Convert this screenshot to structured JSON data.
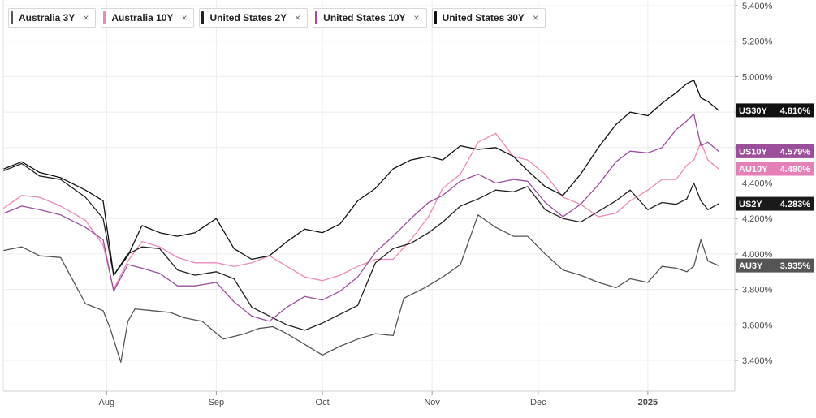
{
  "chart_data": {
    "type": "line",
    "x_ticks": [
      "Aug",
      "Sep",
      "Oct",
      "Nov",
      "Dec",
      "2025"
    ],
    "y_ticks": [
      "5.400%",
      "5.200%",
      "5.000%",
      "4.800%",
      "4.600%",
      "4.400%",
      "4.200%",
      "4.000%",
      "3.800%",
      "3.600%",
      "3.400%"
    ],
    "y_tick_values": [
      5.4,
      5.2,
      5.0,
      4.8,
      4.6,
      4.4,
      4.2,
      4.0,
      3.8,
      3.6,
      3.4
    ],
    "ylim": [
      3.31,
      5.41
    ],
    "x_domain": [
      "2024-07-03",
      "2025-01-21"
    ],
    "grid": "horizontal",
    "legend": "top-left",
    "series": [
      {
        "name": "Australia 3Y",
        "badge": "AU3Y",
        "last_label": "3.935%",
        "color": "#555555",
        "badge_color": "#555555",
        "points": [
          [
            "2024-07-03",
            4.02
          ],
          [
            "2024-07-08",
            4.04
          ],
          [
            "2024-07-13",
            3.99
          ],
          [
            "2024-07-19",
            3.98
          ],
          [
            "2024-07-26",
            3.72
          ],
          [
            "2024-07-31",
            3.68
          ],
          [
            "2024-08-02",
            3.58
          ],
          [
            "2024-08-05",
            3.39
          ],
          [
            "2024-08-07",
            3.62
          ],
          [
            "2024-08-09",
            3.69
          ],
          [
            "2024-08-14",
            3.68
          ],
          [
            "2024-08-19",
            3.67
          ],
          [
            "2024-08-23",
            3.64
          ],
          [
            "2024-08-28",
            3.62
          ],
          [
            "2024-09-03",
            3.52
          ],
          [
            "2024-09-09",
            3.55
          ],
          [
            "2024-09-13",
            3.58
          ],
          [
            "2024-09-17",
            3.59
          ],
          [
            "2024-09-21",
            3.55
          ],
          [
            "2024-09-26",
            3.49
          ],
          [
            "2024-10-01",
            3.43
          ],
          [
            "2024-10-06",
            3.48
          ],
          [
            "2024-10-11",
            3.52
          ],
          [
            "2024-10-16",
            3.55
          ],
          [
            "2024-10-21",
            3.54
          ],
          [
            "2024-10-24",
            3.75
          ],
          [
            "2024-10-30",
            3.81
          ],
          [
            "2024-11-04",
            3.87
          ],
          [
            "2024-11-09",
            3.94
          ],
          [
            "2024-11-14",
            4.22
          ],
          [
            "2024-11-19",
            4.15
          ],
          [
            "2024-11-24",
            4.1
          ],
          [
            "2024-11-28",
            4.1
          ],
          [
            "2024-12-03",
            4.0
          ],
          [
            "2024-12-08",
            3.91
          ],
          [
            "2024-12-13",
            3.88
          ],
          [
            "2024-12-18",
            3.84
          ],
          [
            "2024-12-23",
            3.81
          ],
          [
            "2024-12-27",
            3.86
          ],
          [
            "2025-01-01",
            3.84
          ],
          [
            "2025-01-05",
            3.93
          ],
          [
            "2025-01-09",
            3.92
          ],
          [
            "2025-01-12",
            3.9
          ],
          [
            "2025-01-14",
            3.93
          ],
          [
            "2025-01-16",
            4.08
          ],
          [
            "2025-01-18",
            3.96
          ],
          [
            "2025-01-21",
            3.935
          ]
        ]
      },
      {
        "name": "Australia 10Y",
        "badge": "AU10Y",
        "last_label": "4.480%",
        "color": "#ee88bb",
        "badge_color": "#e57fb8",
        "points": [
          [
            "2024-07-03",
            4.26
          ],
          [
            "2024-07-08",
            4.33
          ],
          [
            "2024-07-13",
            4.32
          ],
          [
            "2024-07-19",
            4.27
          ],
          [
            "2024-07-26",
            4.19
          ],
          [
            "2024-07-31",
            4.05
          ],
          [
            "2024-08-03",
            3.8
          ],
          [
            "2024-08-07",
            3.96
          ],
          [
            "2024-08-11",
            4.07
          ],
          [
            "2024-08-16",
            4.04
          ],
          [
            "2024-08-21",
            3.98
          ],
          [
            "2024-08-26",
            3.95
          ],
          [
            "2024-09-01",
            3.95
          ],
          [
            "2024-09-06",
            3.93
          ],
          [
            "2024-09-11",
            3.95
          ],
          [
            "2024-09-16",
            3.99
          ],
          [
            "2024-09-21",
            3.93
          ],
          [
            "2024-09-26",
            3.87
          ],
          [
            "2024-10-01",
            3.85
          ],
          [
            "2024-10-06",
            3.88
          ],
          [
            "2024-10-11",
            3.93
          ],
          [
            "2024-10-16",
            3.97
          ],
          [
            "2024-10-21",
            3.97
          ],
          [
            "2024-10-26",
            4.08
          ],
          [
            "2024-10-31",
            4.21
          ],
          [
            "2024-11-04",
            4.37
          ],
          [
            "2024-11-09",
            4.45
          ],
          [
            "2024-11-14",
            4.63
          ],
          [
            "2024-11-19",
            4.68
          ],
          [
            "2024-11-24",
            4.55
          ],
          [
            "2024-11-28",
            4.53
          ],
          [
            "2024-12-03",
            4.45
          ],
          [
            "2024-12-08",
            4.32
          ],
          [
            "2024-12-13",
            4.28
          ],
          [
            "2024-12-18",
            4.21
          ],
          [
            "2024-12-23",
            4.23
          ],
          [
            "2024-12-27",
            4.3
          ],
          [
            "2025-01-01",
            4.36
          ],
          [
            "2025-01-05",
            4.42
          ],
          [
            "2025-01-09",
            4.42
          ],
          [
            "2025-01-12",
            4.5
          ],
          [
            "2025-01-14",
            4.53
          ],
          [
            "2025-01-16",
            4.63
          ],
          [
            "2025-01-18",
            4.53
          ],
          [
            "2025-01-21",
            4.48
          ]
        ]
      },
      {
        "name": "United States 2Y",
        "badge": "US2Y",
        "last_label": "4.283%",
        "color": "#222222",
        "badge_color": "#1a1a1a",
        "points": [
          [
            "2024-07-03",
            4.47
          ],
          [
            "2024-07-08",
            4.51
          ],
          [
            "2024-07-13",
            4.44
          ],
          [
            "2024-07-19",
            4.42
          ],
          [
            "2024-07-26",
            4.32
          ],
          [
            "2024-07-31",
            4.2
          ],
          [
            "2024-08-03",
            3.88
          ],
          [
            "2024-08-07",
            4.0
          ],
          [
            "2024-08-11",
            4.04
          ],
          [
            "2024-08-16",
            4.03
          ],
          [
            "2024-08-21",
            3.91
          ],
          [
            "2024-08-26",
            3.88
          ],
          [
            "2024-09-01",
            3.9
          ],
          [
            "2024-09-06",
            3.86
          ],
          [
            "2024-09-11",
            3.7
          ],
          [
            "2024-09-16",
            3.65
          ],
          [
            "2024-09-21",
            3.6
          ],
          [
            "2024-09-26",
            3.57
          ],
          [
            "2024-10-01",
            3.61
          ],
          [
            "2024-10-06",
            3.66
          ],
          [
            "2024-10-11",
            3.71
          ],
          [
            "2024-10-16",
            3.95
          ],
          [
            "2024-10-21",
            4.03
          ],
          [
            "2024-10-26",
            4.06
          ],
          [
            "2024-10-31",
            4.12
          ],
          [
            "2024-11-04",
            4.18
          ],
          [
            "2024-11-09",
            4.27
          ],
          [
            "2024-11-14",
            4.31
          ],
          [
            "2024-11-19",
            4.36
          ],
          [
            "2024-11-24",
            4.35
          ],
          [
            "2024-11-28",
            4.38
          ],
          [
            "2024-12-03",
            4.25
          ],
          [
            "2024-12-08",
            4.2
          ],
          [
            "2024-12-13",
            4.18
          ],
          [
            "2024-12-18",
            4.24
          ],
          [
            "2024-12-23",
            4.3
          ],
          [
            "2024-12-27",
            4.36
          ],
          [
            "2025-01-01",
            4.25
          ],
          [
            "2025-01-05",
            4.29
          ],
          [
            "2025-01-09",
            4.28
          ],
          [
            "2025-01-12",
            4.31
          ],
          [
            "2025-01-14",
            4.4
          ],
          [
            "2025-01-16",
            4.3
          ],
          [
            "2025-01-18",
            4.25
          ],
          [
            "2025-01-21",
            4.283
          ]
        ]
      },
      {
        "name": "United States 10Y",
        "badge": "US10Y",
        "last_label": "4.579%",
        "color": "#9b4f9b",
        "badge_color": "#9b4f9b",
        "points": [
          [
            "2024-07-03",
            4.23
          ],
          [
            "2024-07-08",
            4.27
          ],
          [
            "2024-07-13",
            4.25
          ],
          [
            "2024-07-19",
            4.22
          ],
          [
            "2024-07-26",
            4.15
          ],
          [
            "2024-07-31",
            4.08
          ],
          [
            "2024-08-03",
            3.79
          ],
          [
            "2024-08-07",
            3.94
          ],
          [
            "2024-08-11",
            3.92
          ],
          [
            "2024-08-16",
            3.89
          ],
          [
            "2024-08-21",
            3.82
          ],
          [
            "2024-08-26",
            3.82
          ],
          [
            "2024-09-01",
            3.84
          ],
          [
            "2024-09-06",
            3.73
          ],
          [
            "2024-09-11",
            3.65
          ],
          [
            "2024-09-16",
            3.62
          ],
          [
            "2024-09-21",
            3.7
          ],
          [
            "2024-09-26",
            3.76
          ],
          [
            "2024-10-01",
            3.74
          ],
          [
            "2024-10-06",
            3.79
          ],
          [
            "2024-10-11",
            3.87
          ],
          [
            "2024-10-16",
            4.01
          ],
          [
            "2024-10-21",
            4.1
          ],
          [
            "2024-10-26",
            4.2
          ],
          [
            "2024-10-31",
            4.29
          ],
          [
            "2024-11-04",
            4.33
          ],
          [
            "2024-11-09",
            4.41
          ],
          [
            "2024-11-14",
            4.45
          ],
          [
            "2024-11-19",
            4.4
          ],
          [
            "2024-11-24",
            4.42
          ],
          [
            "2024-11-28",
            4.41
          ],
          [
            "2024-12-03",
            4.29
          ],
          [
            "2024-12-08",
            4.21
          ],
          [
            "2024-12-13",
            4.28
          ],
          [
            "2024-12-18",
            4.39
          ],
          [
            "2024-12-23",
            4.52
          ],
          [
            "2024-12-27",
            4.58
          ],
          [
            "2025-01-01",
            4.57
          ],
          [
            "2025-01-05",
            4.6
          ],
          [
            "2025-01-09",
            4.7
          ],
          [
            "2025-01-12",
            4.75
          ],
          [
            "2025-01-14",
            4.79
          ],
          [
            "2025-01-16",
            4.61
          ],
          [
            "2025-01-18",
            4.63
          ],
          [
            "2025-01-21",
            4.579
          ]
        ]
      },
      {
        "name": "United States 30Y",
        "badge": "US30Y",
        "last_label": "4.810%",
        "color": "#111111",
        "badge_color": "#111111",
        "points": [
          [
            "2024-07-03",
            4.48
          ],
          [
            "2024-07-08",
            4.52
          ],
          [
            "2024-07-13",
            4.46
          ],
          [
            "2024-07-19",
            4.43
          ],
          [
            "2024-07-26",
            4.36
          ],
          [
            "2024-07-31",
            4.3
          ],
          [
            "2024-08-03",
            3.88
          ],
          [
            "2024-08-07",
            3.99
          ],
          [
            "2024-08-11",
            4.16
          ],
          [
            "2024-08-16",
            4.12
          ],
          [
            "2024-08-21",
            4.1
          ],
          [
            "2024-08-26",
            4.12
          ],
          [
            "2024-09-01",
            4.2
          ],
          [
            "2024-09-06",
            4.03
          ],
          [
            "2024-09-11",
            3.97
          ],
          [
            "2024-09-16",
            3.99
          ],
          [
            "2024-09-21",
            4.07
          ],
          [
            "2024-09-26",
            4.14
          ],
          [
            "2024-10-01",
            4.12
          ],
          [
            "2024-10-06",
            4.17
          ],
          [
            "2024-10-11",
            4.3
          ],
          [
            "2024-10-16",
            4.37
          ],
          [
            "2024-10-21",
            4.48
          ],
          [
            "2024-10-26",
            4.53
          ],
          [
            "2024-10-31",
            4.55
          ],
          [
            "2024-11-04",
            4.53
          ],
          [
            "2024-11-09",
            4.61
          ],
          [
            "2024-11-14",
            4.59
          ],
          [
            "2024-11-19",
            4.6
          ],
          [
            "2024-11-24",
            4.55
          ],
          [
            "2024-11-28",
            4.47
          ],
          [
            "2024-12-03",
            4.38
          ],
          [
            "2024-12-08",
            4.33
          ],
          [
            "2024-12-13",
            4.45
          ],
          [
            "2024-12-18",
            4.6
          ],
          [
            "2024-12-23",
            4.73
          ],
          [
            "2024-12-27",
            4.8
          ],
          [
            "2025-01-01",
            4.78
          ],
          [
            "2025-01-05",
            4.85
          ],
          [
            "2025-01-09",
            4.91
          ],
          [
            "2025-01-12",
            4.96
          ],
          [
            "2025-01-14",
            4.98
          ],
          [
            "2025-01-16",
            4.88
          ],
          [
            "2025-01-18",
            4.86
          ],
          [
            "2025-01-21",
            4.81
          ]
        ]
      }
    ]
  }
}
